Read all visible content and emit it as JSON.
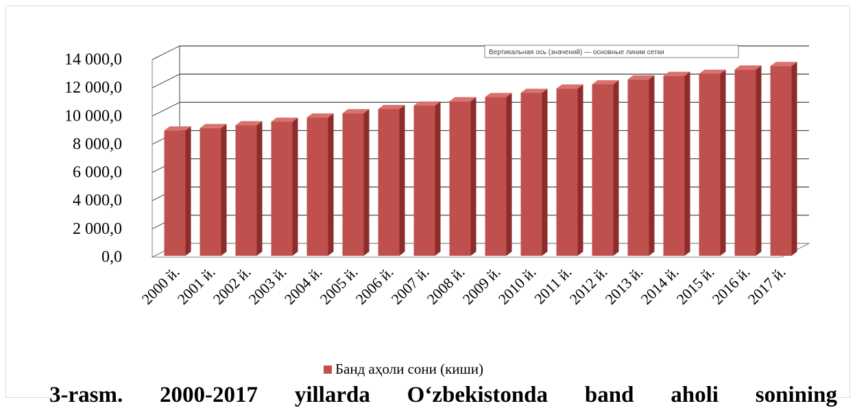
{
  "chart_data": {
    "type": "bar",
    "style": "3d-column",
    "categories": [
      "2000 й.",
      "2001 й.",
      "2002 й.",
      "2003 й.",
      "2004 й.",
      "2005 й.",
      "2006 й.",
      "2007 й.",
      "2008 й.",
      "2009 й.",
      "2010 й.",
      "2011 й.",
      "2012 й.",
      "2013 й.",
      "2014 й.",
      "2015 й.",
      "2016 й.",
      "2017 й."
    ],
    "series": [
      {
        "name": "Банд аҳоли сони (киши)",
        "values": [
          8980,
          9150,
          9350,
          9600,
          9900,
          10200,
          10500,
          10750,
          11050,
          11350,
          11650,
          11950,
          12250,
          12600,
          12850,
          13000,
          13300,
          13550
        ]
      }
    ],
    "yticks": [
      "0,0",
      "2 000,0",
      "4 000,0",
      "6 000,0",
      "8 000,0",
      "10 000,0",
      "12 000,0",
      "14 000,0"
    ],
    "ylim": [
      0,
      14000
    ],
    "grid": true,
    "legend": "bottom",
    "tooltip": "Вертикальная ось (значений) — основные линии сетки",
    "colors": {
      "bar_front": "#c0504d",
      "bar_side": "#8c2d2b",
      "bar_top": "#d9726f",
      "gridline": "#404040",
      "axis_text": "#000000"
    }
  },
  "caption": "3-rasm. 2000-2017 yillarda O‘zbekistonda band aholi sonining"
}
